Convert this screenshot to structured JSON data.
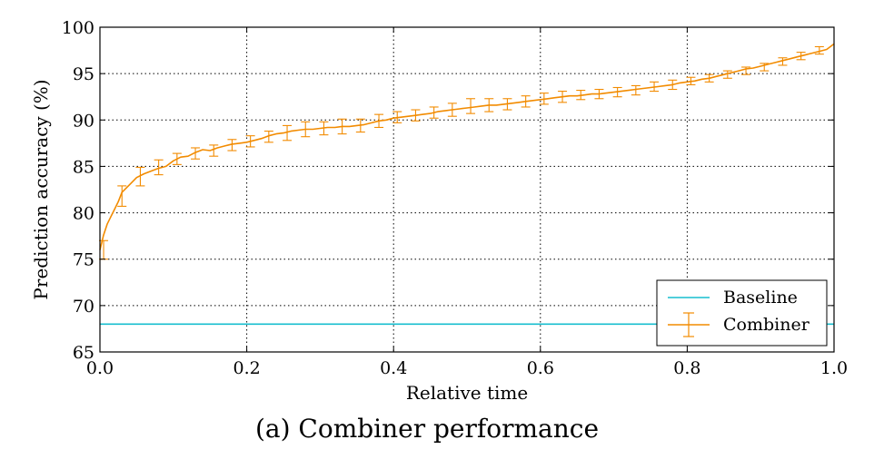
{
  "caption": "(a) Combiner performance",
  "chart_data": {
    "type": "line",
    "title": "",
    "xlabel": "Relative time",
    "ylabel": "Prediction accuracy (%)",
    "xlim": [
      0.0,
      1.0
    ],
    "ylim": [
      65,
      100
    ],
    "xticks": [
      0.0,
      0.2,
      0.4,
      0.6,
      0.8,
      1.0
    ],
    "xtick_labels": [
      "0.0",
      "0.2",
      "0.4",
      "0.6",
      "0.8",
      "1.0"
    ],
    "yticks": [
      65,
      70,
      75,
      80,
      85,
      90,
      95,
      100
    ],
    "ytick_labels": [
      "65",
      "70",
      "75",
      "80",
      "85",
      "90",
      "95",
      "100"
    ],
    "grid": true,
    "legend": {
      "position": "bottom-right"
    },
    "colors": {
      "baseline": "#17becf",
      "combiner": "#f28b00"
    },
    "series": [
      {
        "name": "Baseline",
        "kind": "hline",
        "y": 68.0
      },
      {
        "name": "Combiner",
        "kind": "errorbar-line",
        "x": [
          0.0,
          0.005,
          0.01,
          0.015,
          0.02,
          0.025,
          0.03,
          0.04,
          0.05,
          0.06,
          0.07,
          0.08,
          0.09,
          0.1,
          0.11,
          0.12,
          0.13,
          0.14,
          0.15,
          0.16,
          0.17,
          0.18,
          0.19,
          0.2,
          0.21,
          0.22,
          0.23,
          0.24,
          0.25,
          0.26,
          0.27,
          0.28,
          0.29,
          0.3,
          0.31,
          0.32,
          0.33,
          0.34,
          0.35,
          0.36,
          0.37,
          0.38,
          0.39,
          0.4,
          0.41,
          0.42,
          0.43,
          0.44,
          0.45,
          0.46,
          0.47,
          0.48,
          0.49,
          0.5,
          0.51,
          0.52,
          0.53,
          0.54,
          0.55,
          0.56,
          0.57,
          0.58,
          0.59,
          0.6,
          0.61,
          0.62,
          0.63,
          0.64,
          0.65,
          0.66,
          0.67,
          0.68,
          0.69,
          0.7,
          0.71,
          0.72,
          0.73,
          0.74,
          0.75,
          0.76,
          0.77,
          0.78,
          0.79,
          0.8,
          0.81,
          0.82,
          0.83,
          0.84,
          0.85,
          0.86,
          0.87,
          0.88,
          0.89,
          0.9,
          0.91,
          0.92,
          0.93,
          0.94,
          0.95,
          0.96,
          0.97,
          0.98,
          0.99,
          1.0
        ],
        "y": [
          76.0,
          77.6,
          78.8,
          79.6,
          80.4,
          81.2,
          82.2,
          83.0,
          83.8,
          84.2,
          84.5,
          84.8,
          85.0,
          85.6,
          86.0,
          86.1,
          86.5,
          86.8,
          86.7,
          87.0,
          87.2,
          87.4,
          87.5,
          87.6,
          87.8,
          88.0,
          88.3,
          88.5,
          88.6,
          88.8,
          88.9,
          89.0,
          89.0,
          89.1,
          89.2,
          89.2,
          89.3,
          89.3,
          89.4,
          89.5,
          89.7,
          89.9,
          90.0,
          90.2,
          90.3,
          90.4,
          90.5,
          90.6,
          90.7,
          90.9,
          91.0,
          91.1,
          91.2,
          91.3,
          91.4,
          91.5,
          91.6,
          91.6,
          91.7,
          91.8,
          91.9,
          92.0,
          92.1,
          92.2,
          92.3,
          92.4,
          92.5,
          92.6,
          92.6,
          92.7,
          92.8,
          92.8,
          92.9,
          93.0,
          93.1,
          93.2,
          93.3,
          93.4,
          93.5,
          93.6,
          93.7,
          93.8,
          94.0,
          94.1,
          94.2,
          94.4,
          94.5,
          94.7,
          94.9,
          95.1,
          95.3,
          95.5,
          95.6,
          95.8,
          96.0,
          96.2,
          96.4,
          96.6,
          96.8,
          97.0,
          97.2,
          97.4,
          97.6,
          98.2
        ],
        "errorbar_x": [
          0.005,
          0.03,
          0.055,
          0.08,
          0.105,
          0.13,
          0.155,
          0.18,
          0.205,
          0.23,
          0.255,
          0.28,
          0.305,
          0.33,
          0.355,
          0.38,
          0.405,
          0.43,
          0.455,
          0.48,
          0.505,
          0.53,
          0.555,
          0.58,
          0.605,
          0.63,
          0.655,
          0.68,
          0.705,
          0.73,
          0.755,
          0.78,
          0.805,
          0.83,
          0.855,
          0.88,
          0.905,
          0.93,
          0.955,
          0.98
        ],
        "errorbar_y": [
          76.0,
          81.8,
          83.9,
          84.9,
          85.8,
          86.4,
          86.7,
          87.3,
          87.7,
          88.2,
          88.6,
          89.0,
          89.1,
          89.3,
          89.4,
          89.9,
          90.3,
          90.5,
          90.8,
          91.1,
          91.5,
          91.6,
          91.7,
          92.0,
          92.3,
          92.5,
          92.7,
          92.8,
          93.0,
          93.2,
          93.6,
          93.8,
          94.2,
          94.5,
          94.9,
          95.3,
          95.7,
          96.3,
          96.9,
          97.5
        ],
        "errorbar_err": [
          1.0,
          1.1,
          1.0,
          0.8,
          0.6,
          0.6,
          0.6,
          0.6,
          0.6,
          0.6,
          0.8,
          0.8,
          0.7,
          0.8,
          0.7,
          0.7,
          0.6,
          0.6,
          0.6,
          0.7,
          0.8,
          0.7,
          0.6,
          0.6,
          0.6,
          0.6,
          0.5,
          0.5,
          0.5,
          0.5,
          0.5,
          0.5,
          0.4,
          0.4,
          0.4,
          0.4,
          0.4,
          0.4,
          0.4,
          0.4
        ]
      }
    ]
  }
}
